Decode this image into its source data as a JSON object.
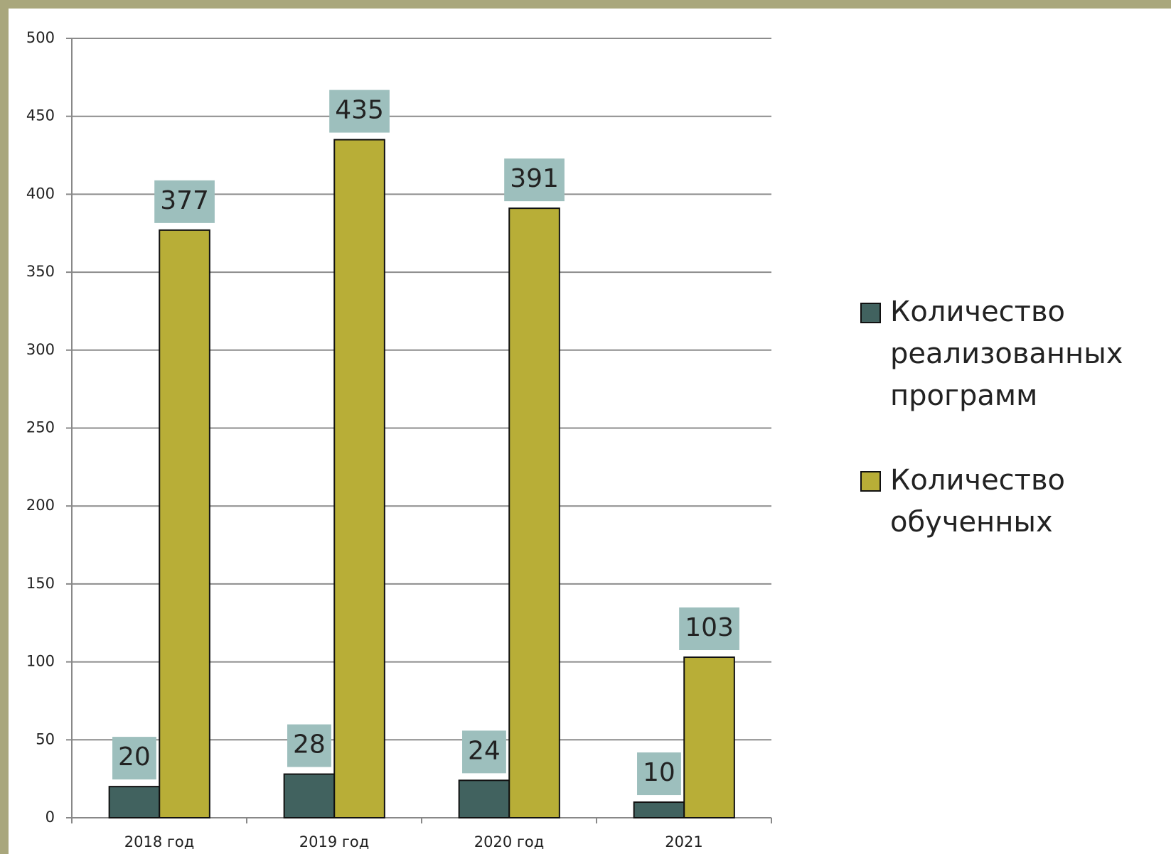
{
  "chart_data": {
    "type": "bar",
    "categories": [
      "2018 год",
      "2019 год",
      "2020 год",
      "2021"
    ],
    "series": [
      {
        "name": "Количество реализованных программ",
        "color": "#41625f",
        "values": [
          20,
          28,
          24,
          10
        ]
      },
      {
        "name": "Количество обученных",
        "color": "#b8ae37",
        "values": [
          377,
          435,
          391,
          103
        ]
      }
    ],
    "ylim": [
      0,
      500
    ],
    "yticks": [
      0,
      50,
      100,
      150,
      200,
      250,
      300,
      350,
      400,
      450,
      500
    ],
    "grid": true,
    "legend": "right"
  }
}
